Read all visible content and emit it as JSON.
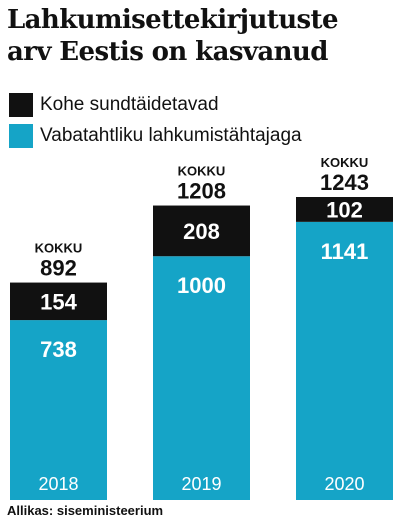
{
  "title_lines": [
    "Lahkumisettekirjutuste",
    "arv Eestis on kasvanud"
  ],
  "source": "Allikas: siseministeerium",
  "colors": {
    "compulsory": "#111111",
    "voluntary": "#15a4c7",
    "text_on_bar": "#ffffff",
    "total_text": "#111111"
  },
  "chart_data": {
    "type": "bar",
    "stacked": true,
    "categories": [
      "2018",
      "2019",
      "2020"
    ],
    "series": [
      {
        "name": "Kohe sundtäidetavad",
        "values": [
          154,
          208,
          102
        ]
      },
      {
        "name": "Vabatahtliku lahkumistähtajaga",
        "values": [
          738,
          1000,
          1141
        ]
      }
    ],
    "totals": [
      892,
      1208,
      1243
    ],
    "total_label": "KOKKU",
    "legend_position": "top-left",
    "grid": false,
    "ylim": [
      0,
      1243
    ]
  }
}
